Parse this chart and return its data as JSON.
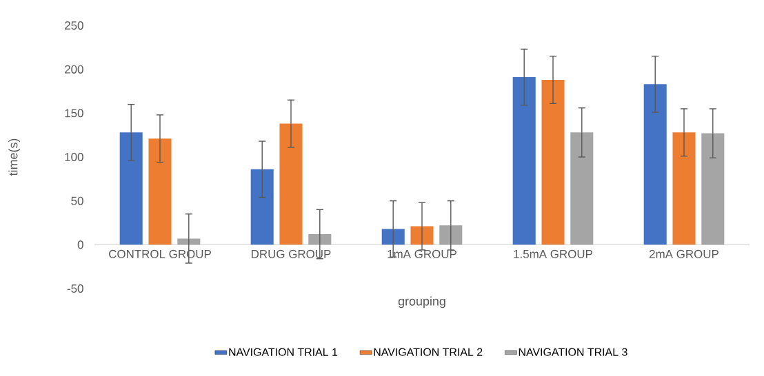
{
  "chart_data": {
    "type": "bar",
    "xlabel": "grouping",
    "ylabel": "time(s)",
    "categories": [
      "CONTROL GROUP",
      "DRUG GROUP",
      "1mA GROUP",
      "1.5mA  GROUP",
      "2mA GROUP"
    ],
    "series": [
      {
        "name": "NAVIGATION TRIAL 1",
        "color": "#4472c4",
        "values": [
          128,
          86,
          18,
          191,
          183
        ],
        "errors": [
          32,
          32,
          32,
          32,
          32
        ]
      },
      {
        "name": "NAVIGATION TRIAL 2",
        "color": "#ed7d31",
        "values": [
          121,
          138,
          21,
          188,
          128
        ],
        "errors": [
          27,
          27,
          27,
          27,
          27
        ]
      },
      {
        "name": "NAVIGATION TRIAL 3",
        "color": "#a5a5a5",
        "values": [
          7,
          12,
          22,
          128,
          127
        ],
        "errors": [
          28,
          28,
          28,
          28,
          28
        ]
      }
    ],
    "ylim": [
      -50,
      250
    ],
    "yticks": [
      -50,
      0,
      50,
      100,
      150,
      200,
      250
    ],
    "legend": "bottom"
  }
}
